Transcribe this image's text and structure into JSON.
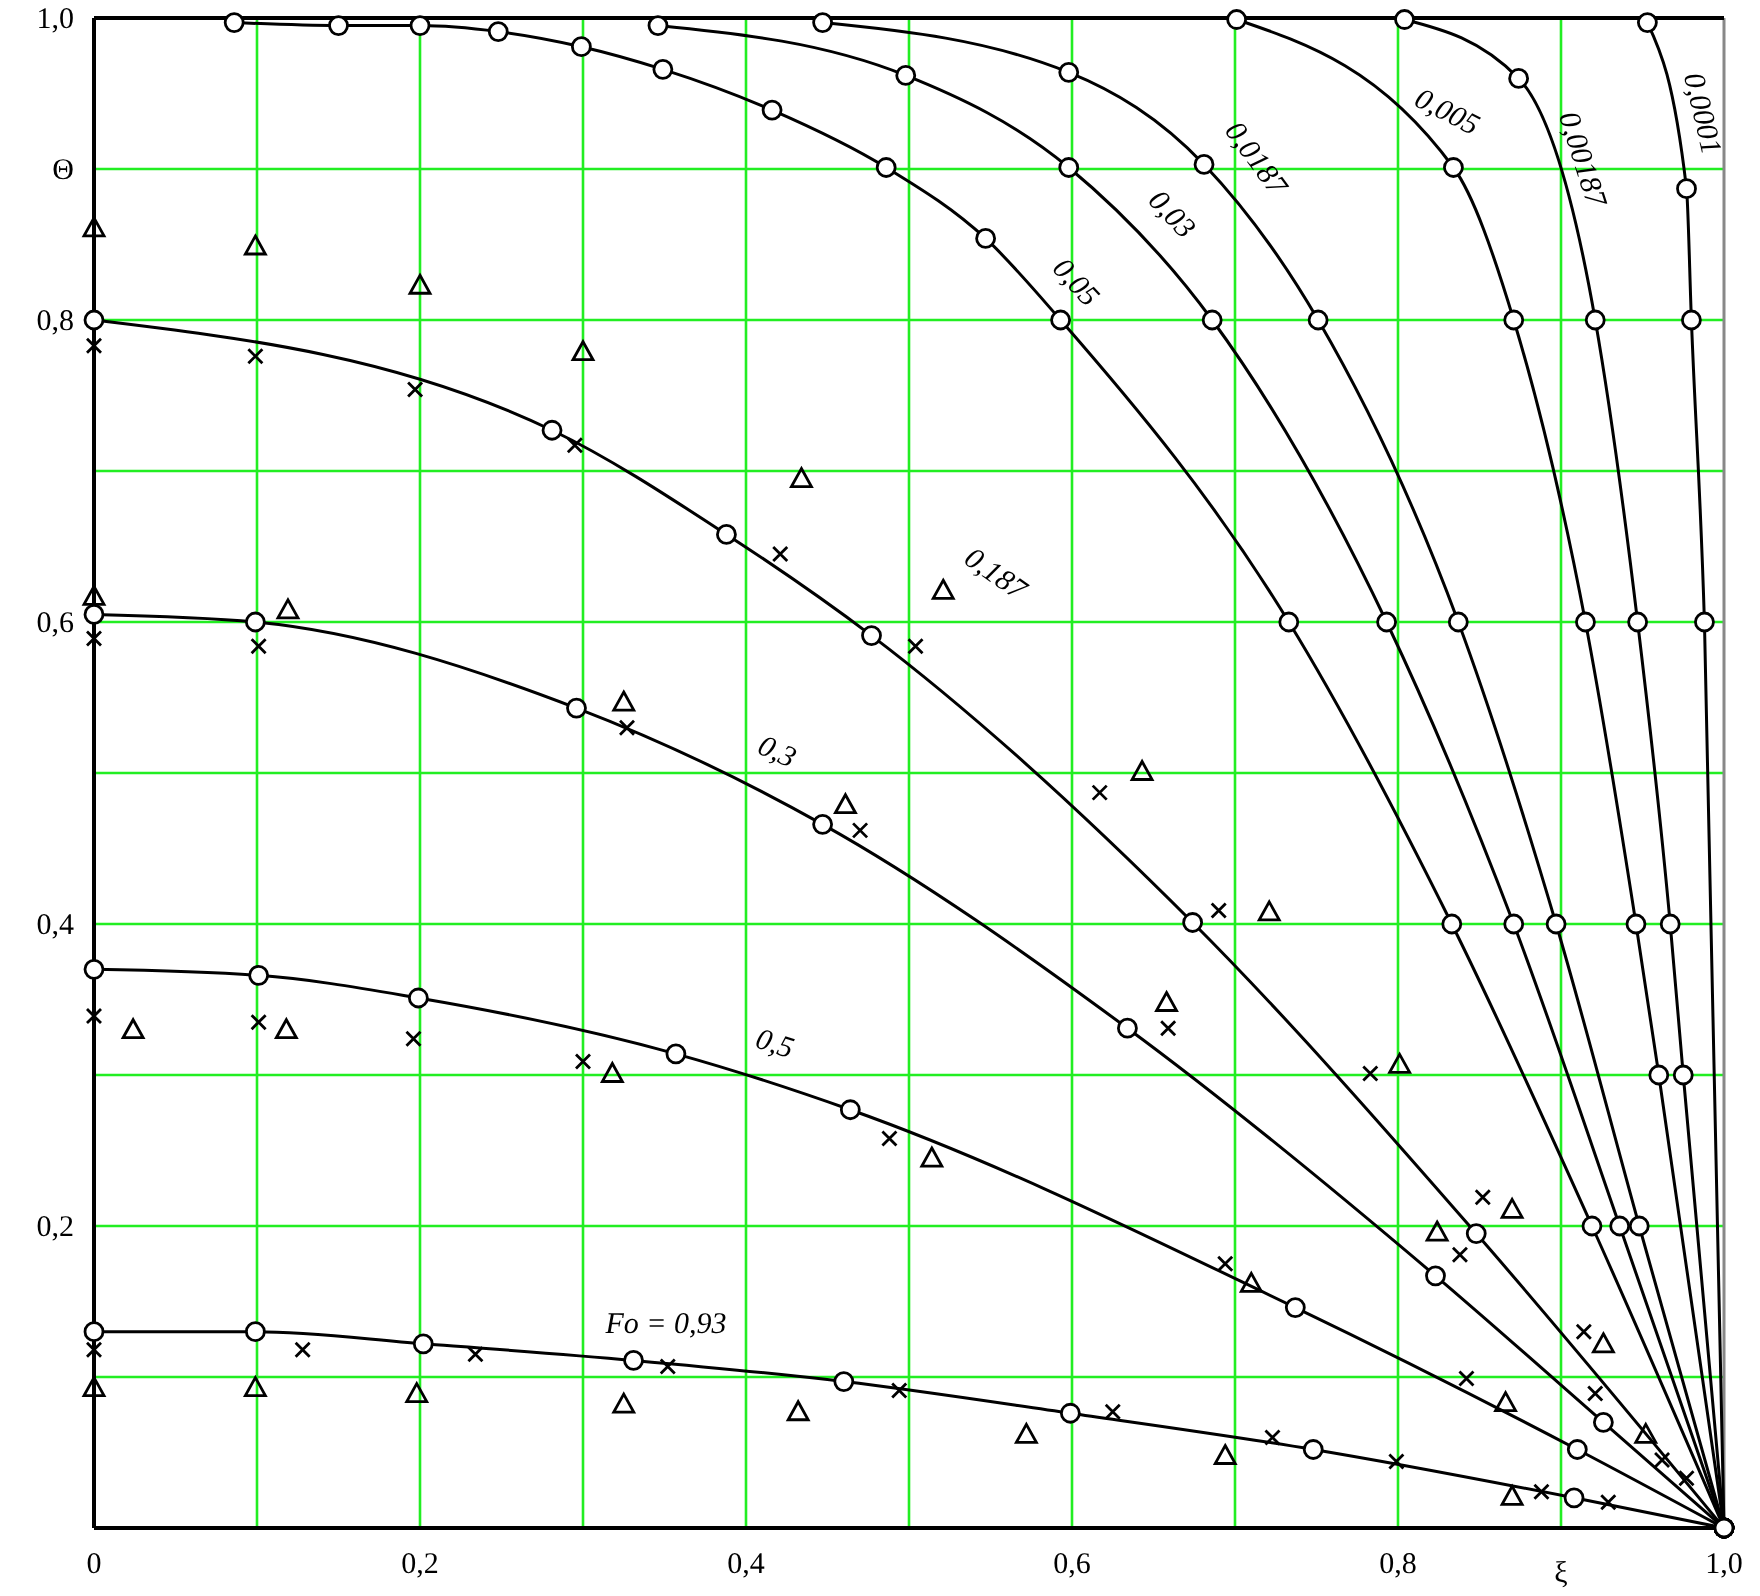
{
  "chart_data": {
    "type": "line",
    "xlabel": "ξ",
    "ylabel": "Θ",
    "xlim": [
      0,
      1
    ],
    "ylim": [
      0,
      1
    ],
    "xticks": [
      {
        "value": 0,
        "label": "0"
      },
      {
        "value": 0.1,
        "label": null
      },
      {
        "value": 0.2,
        "label": "0,2"
      },
      {
        "value": 0.3,
        "label": null
      },
      {
        "value": 0.4,
        "label": "0,4"
      },
      {
        "value": 0.5,
        "label": null
      },
      {
        "value": 0.6,
        "label": "0,6"
      },
      {
        "value": 0.7,
        "label": null
      },
      {
        "value": 0.8,
        "label": "0,8"
      },
      {
        "value": 0.9,
        "label": null
      },
      {
        "value": 1,
        "label": "1,0"
      }
    ],
    "yticks": [
      {
        "value": 0.1,
        "label": null
      },
      {
        "value": 0.2,
        "label": "0,2"
      },
      {
        "value": 0.3,
        "label": null
      },
      {
        "value": 0.4,
        "label": "0,4"
      },
      {
        "value": 0.5,
        "label": null
      },
      {
        "value": 0.6,
        "label": "0,6"
      },
      {
        "value": 0.7,
        "label": null
      },
      {
        "value": 0.8,
        "label": "0,8"
      },
      {
        "value": 0.9,
        "label": null
      },
      {
        "value": 1,
        "label": "1,0"
      }
    ],
    "grid": true,
    "series": [
      {
        "name": "0,0001",
        "marker": "circle",
        "color": "#000000",
        "x": [
          0.953,
          0.977,
          0.98,
          0.988,
          1
        ],
        "values": [
          0.997,
          0.887,
          0.8,
          0.6,
          0
        ]
      },
      {
        "name": "0,00187",
        "marker": "circle",
        "color": "#000000",
        "x": [
          0.804,
          0.874,
          0.921,
          0.947,
          0.967,
          0.975,
          1
        ],
        "values": [
          0.999,
          0.96,
          0.8,
          0.6,
          0.4,
          0.3,
          0
        ]
      },
      {
        "name": "0,005",
        "marker": "circle",
        "color": "#000000",
        "x": [
          0.701,
          0.834,
          0.871,
          0.915,
          0.946,
          0.96,
          1
        ],
        "values": [
          0.999,
          0.901,
          0.8,
          0.6,
          0.4,
          0.3,
          0
        ]
      },
      {
        "name": "0,0187",
        "marker": "circle",
        "color": "#000000",
        "x": [
          0.447,
          0.598,
          0.681,
          0.751,
          0.837,
          0.897,
          0.948,
          1
        ],
        "values": [
          0.997,
          0.964,
          0.903,
          0.8,
          0.6,
          0.4,
          0.2,
          0
        ]
      },
      {
        "name": "0,03",
        "marker": "circle",
        "color": "#000000",
        "x": [
          0.346,
          0.498,
          0.598,
          0.686,
          0.793,
          0.871,
          0.936,
          1
        ],
        "values": [
          0.995,
          0.962,
          0.901,
          0.8,
          0.6,
          0.4,
          0.2,
          0
        ]
      },
      {
        "name": "0,05",
        "marker": "circle",
        "color": "#000000",
        "x": [
          0.086,
          0.15,
          0.2,
          0.248,
          0.299,
          0.349,
          0.416,
          0.486,
          0.547,
          0.593,
          0.733,
          0.833,
          0.919,
          1
        ],
        "values": [
          0.997,
          0.995,
          0.995,
          0.991,
          0.981,
          0.966,
          0.939,
          0.901,
          0.854,
          0.8,
          0.6,
          0.4,
          0.2,
          0
        ]
      },
      {
        "name": "0,187",
        "marker": "circle",
        "color": "#000000",
        "x": [
          0,
          0.281,
          0.388,
          0.477,
          0.674,
          0.848,
          1
        ],
        "values": [
          0.8,
          0.727,
          0.658,
          0.591,
          0.401,
          0.195,
          0
        ]
      },
      {
        "name": "0,3",
        "marker": "circle",
        "color": "#000000",
        "x": [
          0,
          0.099,
          0.296,
          0.447,
          0.634,
          0.823,
          0.926,
          1
        ],
        "values": [
          0.605,
          0.6,
          0.543,
          0.466,
          0.331,
          0.167,
          0.07,
          0
        ]
      },
      {
        "name": "0,5",
        "marker": "circle",
        "color": "#000000",
        "x": [
          0,
          0.101,
          0.199,
          0.357,
          0.464,
          0.737,
          0.91,
          1
        ],
        "values": [
          0.37,
          0.366,
          0.351,
          0.314,
          0.277,
          0.146,
          0.052,
          0
        ]
      },
      {
        "name": "Fo = 0,93",
        "marker": "circle",
        "color": "#000000",
        "x": [
          0,
          0.099,
          0.202,
          0.331,
          0.46,
          0.599,
          0.748,
          0.908,
          1
        ],
        "values": [
          0.13,
          0.13,
          0.122,
          0.111,
          0.097,
          0.076,
          0.052,
          0.02,
          0
        ]
      },
      {
        "type": "scatter",
        "marker": "cross",
        "color": "#000000",
        "x": [
          0,
          0.128,
          0.234,
          0.352,
          0.494,
          0.625,
          0.723,
          0.799,
          0.888,
          0.929,
          0,
          0.101,
          0.196,
          0.3,
          0.488,
          0.694,
          0.842,
          0.962,
          0,
          0.101,
          0.327,
          0.47,
          0.659,
          0.838,
          0.921,
          0.977,
          0,
          0.099,
          0.197,
          0.295,
          0.421,
          0.504,
          0.617,
          0.69,
          0.783,
          0.852,
          0.914
        ],
        "values": [
          0.118,
          0.118,
          0.115,
          0.107,
          0.091,
          0.077,
          0.06,
          0.044,
          0.024,
          0.017,
          0.339,
          0.335,
          0.324,
          0.309,
          0.258,
          0.175,
          0.099,
          0.045,
          0.589,
          0.584,
          0.53,
          0.462,
          0.331,
          0.181,
          0.089,
          0.033,
          0.783,
          0.776,
          0.754,
          0.717,
          0.645,
          0.584,
          0.487,
          0.409,
          0.301,
          0.219,
          0.13
        ]
      },
      {
        "type": "scatter",
        "marker": "triangle",
        "color": "#000000",
        "x": [
          0,
          0.099,
          0.198,
          0.325,
          0.432,
          0.572,
          0.694,
          0.87,
          0.024,
          0.118,
          0.318,
          0.514,
          0.71,
          0.866,
          0,
          0.119,
          0.325,
          0.461,
          0.658,
          0.824,
          0.952,
          0,
          0.099,
          0.2,
          0.3,
          0.434,
          0.521,
          0.643,
          0.721,
          0.801,
          0.87,
          0.926
        ],
        "values": [
          0.093,
          0.093,
          0.089,
          0.082,
          0.077,
          0.062,
          0.048,
          0.021,
          0.33,
          0.33,
          0.301,
          0.245,
          0.162,
          0.083,
          0.617,
          0.608,
          0.547,
          0.479,
          0.348,
          0.196,
          0.062,
          0.861,
          0.849,
          0.823,
          0.779,
          0.695,
          0.621,
          0.501,
          0.408,
          0.307,
          0.211,
          0.122
        ]
      }
    ]
  }
}
